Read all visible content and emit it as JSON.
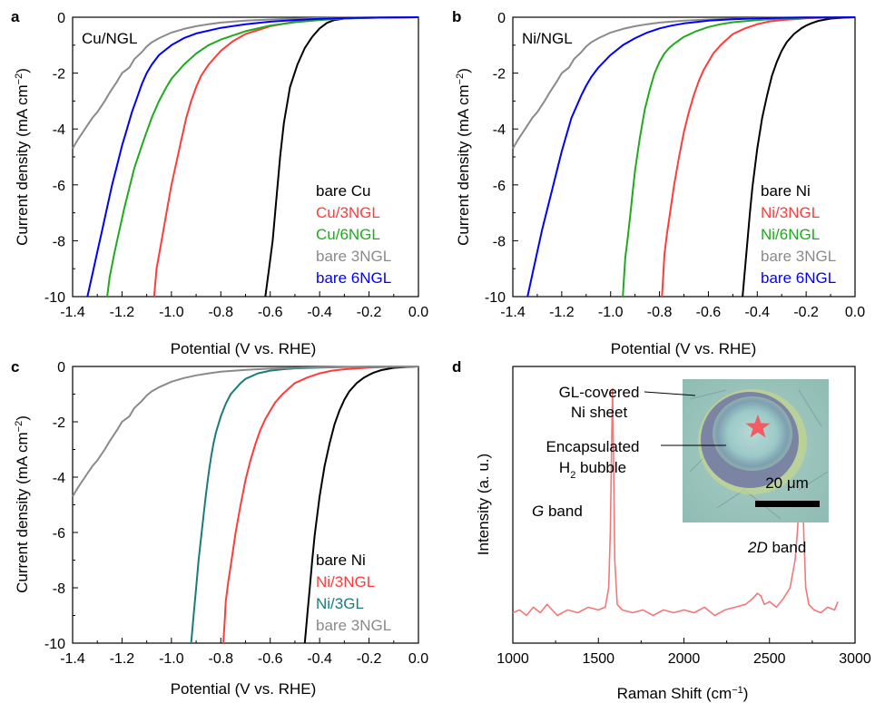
{
  "chart_data": [
    {
      "type": "line",
      "panel_label": "a",
      "title": "Cu/NGL",
      "xlabel": "Potential (V vs. RHE)",
      "ylabel_main": "Current density (mA cm",
      "ylabel_sup": "−2",
      "ylabel_close": ")",
      "xlim": [
        -1.4,
        0.0
      ],
      "ylim": [
        -10,
        0
      ],
      "xticks": [
        "-1.4",
        "-1.2",
        "-1.0",
        "-0.8",
        "-0.6",
        "-0.4",
        "-0.2",
        "0.0"
      ],
      "yticks": [
        "0",
        "-2",
        "-4",
        "-6",
        "-8",
        "-10"
      ],
      "legend_position": "bottom-right",
      "series": [
        {
          "name": "bare Cu",
          "color": "#000000",
          "x": [
            -0.62,
            -0.605,
            -0.59,
            -0.575,
            -0.56,
            -0.545,
            -0.52,
            -0.49,
            -0.46,
            -0.43,
            -0.4,
            -0.37,
            -0.34,
            -0.3,
            -0.25,
            -0.2,
            -0.1,
            0.0
          ],
          "y": [
            -10,
            -9.0,
            -8.0,
            -6.5,
            -5.0,
            -3.8,
            -2.5,
            -1.7,
            -1.1,
            -0.7,
            -0.4,
            -0.2,
            -0.1,
            -0.05,
            -0.03,
            -0.02,
            -0.01,
            0
          ]
        },
        {
          "name": "Cu/3NGL",
          "color": "#ff3b3b",
          "x": [
            -1.07,
            -1.06,
            -1.04,
            -1.02,
            -1.0,
            -0.98,
            -0.96,
            -0.94,
            -0.92,
            -0.9,
            -0.88,
            -0.85,
            -0.8,
            -0.75,
            -0.7,
            -0.6,
            -0.5,
            -0.4,
            -0.3,
            -0.2,
            -0.1,
            0.0
          ],
          "y": [
            -10,
            -9.0,
            -8.0,
            -7.0,
            -6.0,
            -5.2,
            -4.4,
            -3.6,
            -3.0,
            -2.5,
            -2.1,
            -1.7,
            -1.2,
            -0.85,
            -0.6,
            -0.32,
            -0.16,
            -0.08,
            -0.04,
            -0.02,
            -0.01,
            0
          ]
        },
        {
          "name": "Cu/6NGL",
          "color": "#1faa1f",
          "x": [
            -1.26,
            -1.25,
            -1.23,
            -1.21,
            -1.19,
            -1.17,
            -1.15,
            -1.12,
            -1.1,
            -1.08,
            -1.05,
            -1.02,
            -1.0,
            -0.95,
            -0.9,
            -0.85,
            -0.8,
            -0.7,
            -0.6,
            -0.5,
            -0.4,
            -0.3,
            -0.2,
            -0.1,
            0.0
          ],
          "y": [
            -10,
            -9.3,
            -8.4,
            -7.6,
            -6.8,
            -6.1,
            -5.4,
            -4.6,
            -4.1,
            -3.6,
            -3.0,
            -2.5,
            -2.2,
            -1.7,
            -1.3,
            -1.0,
            -0.8,
            -0.5,
            -0.3,
            -0.18,
            -0.1,
            -0.05,
            -0.02,
            -0.01,
            0
          ]
        },
        {
          "name": "bare 3NGL",
          "color": "#8a8a8a",
          "x": [
            -1.4,
            -1.38,
            -1.35,
            -1.32,
            -1.3,
            -1.27,
            -1.25,
            -1.22,
            -1.2,
            -1.17,
            -1.15,
            -1.12,
            -1.1,
            -1.08,
            -1.05,
            -1.0,
            -0.95,
            -0.9,
            -0.85,
            -0.8,
            -0.7,
            -0.6,
            -0.5,
            -0.4,
            -0.3,
            -0.2,
            -0.1,
            0.0
          ],
          "y": [
            -4.7,
            -4.4,
            -4.0,
            -3.6,
            -3.4,
            -3.0,
            -2.7,
            -2.3,
            -2.0,
            -1.8,
            -1.5,
            -1.25,
            -1.05,
            -0.9,
            -0.75,
            -0.55,
            -0.42,
            -0.32,
            -0.25,
            -0.19,
            -0.12,
            -0.08,
            -0.05,
            -0.03,
            -0.02,
            -0.01,
            -0.005,
            0
          ]
        },
        {
          "name": "bare 6NGL",
          "color": "#0000ff",
          "x": [
            -1.34,
            -1.32,
            -1.3,
            -1.28,
            -1.26,
            -1.24,
            -1.22,
            -1.2,
            -1.18,
            -1.16,
            -1.14,
            -1.12,
            -1.1,
            -1.08,
            -1.05,
            -1.0,
            -0.95,
            -0.9,
            -0.8,
            -0.7,
            -0.6,
            -0.5,
            -0.4,
            -0.3,
            -0.2,
            -0.1,
            0.0
          ],
          "y": [
            -10,
            -9.2,
            -8.4,
            -7.6,
            -6.8,
            -6.0,
            -5.3,
            -4.6,
            -4.0,
            -3.4,
            -2.9,
            -2.4,
            -2.0,
            -1.7,
            -1.35,
            -1.0,
            -0.75,
            -0.58,
            -0.38,
            -0.25,
            -0.16,
            -0.1,
            -0.06,
            -0.03,
            -0.015,
            -0.005,
            0
          ]
        }
      ]
    },
    {
      "type": "line",
      "panel_label": "b",
      "title": "Ni/NGL",
      "xlabel": "Potential (V vs. RHE)",
      "ylabel_main": "Current density (mA cm",
      "ylabel_sup": "−2",
      "ylabel_close": ")",
      "xlim": [
        -1.4,
        0.0
      ],
      "ylim": [
        -10,
        0
      ],
      "xticks": [
        "-1.4",
        "-1.2",
        "-1.0",
        "-0.8",
        "-0.6",
        "-0.4",
        "-0.2",
        "0.0"
      ],
      "yticks": [
        "0",
        "-2",
        "-4",
        "-6",
        "-8",
        "-10"
      ],
      "legend_position": "bottom-right",
      "series": [
        {
          "name": "bare Ni",
          "color": "#000000",
          "x": [
            -0.46,
            -0.45,
            -0.44,
            -0.43,
            -0.42,
            -0.41,
            -0.4,
            -0.38,
            -0.36,
            -0.34,
            -0.32,
            -0.3,
            -0.28,
            -0.25,
            -0.22,
            -0.2,
            -0.18,
            -0.15,
            -0.1,
            -0.05,
            0.0
          ],
          "y": [
            -10,
            -9.0,
            -8.0,
            -7.0,
            -6.1,
            -5.4,
            -4.7,
            -3.6,
            -2.8,
            -2.1,
            -1.6,
            -1.2,
            -0.9,
            -0.6,
            -0.4,
            -0.3,
            -0.22,
            -0.13,
            -0.05,
            -0.02,
            0
          ]
        },
        {
          "name": "Ni/3NGL",
          "color": "#ff3b3b",
          "x": [
            -0.79,
            -0.785,
            -0.78,
            -0.77,
            -0.76,
            -0.75,
            -0.74,
            -0.72,
            -0.7,
            -0.68,
            -0.66,
            -0.64,
            -0.62,
            -0.6,
            -0.58,
            -0.55,
            -0.5,
            -0.45,
            -0.4,
            -0.35,
            -0.3,
            -0.2,
            -0.1,
            0.0
          ],
          "y": [
            -10,
            -9.3,
            -8.5,
            -7.8,
            -7.2,
            -6.6,
            -6.0,
            -5.0,
            -4.1,
            -3.4,
            -2.8,
            -2.3,
            -1.9,
            -1.6,
            -1.3,
            -1.0,
            -0.6,
            -0.4,
            -0.25,
            -0.15,
            -0.1,
            -0.04,
            -0.01,
            0
          ]
        },
        {
          "name": "Ni/6NGL",
          "color": "#1faa1f",
          "x": [
            -0.95,
            -0.945,
            -0.94,
            -0.93,
            -0.92,
            -0.91,
            -0.9,
            -0.88,
            -0.86,
            -0.84,
            -0.82,
            -0.8,
            -0.78,
            -0.76,
            -0.74,
            -0.7,
            -0.65,
            -0.6,
            -0.55,
            -0.5,
            -0.4,
            -0.3,
            -0.2,
            -0.1,
            0.0
          ],
          "y": [
            -10,
            -9.3,
            -8.6,
            -7.9,
            -7.1,
            -6.3,
            -5.5,
            -4.3,
            -3.3,
            -2.6,
            -2.0,
            -1.6,
            -1.3,
            -1.1,
            -0.95,
            -0.7,
            -0.5,
            -0.35,
            -0.25,
            -0.18,
            -0.1,
            -0.05,
            -0.02,
            -0.01,
            0
          ]
        },
        {
          "name": "bare 3NGL",
          "color": "#8a8a8a",
          "x": [
            -1.4,
            -1.38,
            -1.35,
            -1.32,
            -1.3,
            -1.27,
            -1.25,
            -1.22,
            -1.2,
            -1.17,
            -1.15,
            -1.12,
            -1.1,
            -1.08,
            -1.05,
            -1.0,
            -0.95,
            -0.9,
            -0.85,
            -0.8,
            -0.7,
            -0.6,
            -0.5,
            -0.4,
            -0.3,
            -0.2,
            -0.1,
            0.0
          ],
          "y": [
            -4.7,
            -4.4,
            -4.0,
            -3.6,
            -3.4,
            -3.0,
            -2.7,
            -2.3,
            -2.0,
            -1.8,
            -1.5,
            -1.25,
            -1.05,
            -0.9,
            -0.75,
            -0.55,
            -0.42,
            -0.32,
            -0.25,
            -0.19,
            -0.12,
            -0.08,
            -0.05,
            -0.03,
            -0.02,
            -0.01,
            -0.005,
            0
          ]
        },
        {
          "name": "bare 6NGL",
          "color": "#0000ff",
          "x": [
            -1.34,
            -1.32,
            -1.3,
            -1.28,
            -1.26,
            -1.24,
            -1.22,
            -1.2,
            -1.18,
            -1.16,
            -1.14,
            -1.12,
            -1.1,
            -1.08,
            -1.05,
            -1.0,
            -0.95,
            -0.9,
            -0.85,
            -0.8,
            -0.75,
            -0.7,
            -0.6,
            -0.5,
            -0.4,
            -0.3,
            -0.2,
            -0.1,
            0.0
          ],
          "y": [
            -10,
            -9.2,
            -8.4,
            -7.6,
            -6.9,
            -6.2,
            -5.5,
            -4.8,
            -4.2,
            -3.6,
            -3.2,
            -2.8,
            -2.45,
            -2.15,
            -1.8,
            -1.35,
            -1.0,
            -0.75,
            -0.55,
            -0.4,
            -0.3,
            -0.22,
            -0.12,
            -0.07,
            -0.04,
            -0.02,
            -0.01,
            -0.005,
            0
          ]
        }
      ]
    },
    {
      "type": "line",
      "panel_label": "c",
      "title": "",
      "xlabel": "Potential (V vs. RHE)",
      "ylabel_main": "Current density (mA cm",
      "ylabel_sup": "−2",
      "ylabel_close": ")",
      "xlim": [
        -1.4,
        0.0
      ],
      "ylim": [
        -10,
        0
      ],
      "xticks": [
        "-1.4",
        "-1.2",
        "-1.0",
        "-0.8",
        "-0.6",
        "-0.4",
        "-0.2",
        "0.0"
      ],
      "yticks": [
        "0",
        "-2",
        "-4",
        "-6",
        "-8",
        "-10"
      ],
      "legend_position": "bottom-right",
      "series": [
        {
          "name": "bare Ni",
          "color": "#000000",
          "x": [
            -0.46,
            -0.45,
            -0.44,
            -0.43,
            -0.42,
            -0.41,
            -0.4,
            -0.38,
            -0.36,
            -0.34,
            -0.32,
            -0.3,
            -0.28,
            -0.25,
            -0.22,
            -0.2,
            -0.18,
            -0.15,
            -0.1,
            -0.05,
            0.0
          ],
          "y": [
            -10,
            -9.0,
            -8.0,
            -7.0,
            -6.1,
            -5.4,
            -4.7,
            -3.6,
            -2.8,
            -2.1,
            -1.6,
            -1.2,
            -0.9,
            -0.6,
            -0.4,
            -0.3,
            -0.22,
            -0.13,
            -0.05,
            -0.02,
            0
          ]
        },
        {
          "name": "Ni/3NGL",
          "color": "#ff3b3b",
          "x": [
            -0.79,
            -0.785,
            -0.78,
            -0.77,
            -0.76,
            -0.75,
            -0.74,
            -0.72,
            -0.7,
            -0.68,
            -0.66,
            -0.64,
            -0.62,
            -0.6,
            -0.58,
            -0.55,
            -0.5,
            -0.45,
            -0.4,
            -0.35,
            -0.3,
            -0.2,
            -0.1,
            0.0
          ],
          "y": [
            -10,
            -9.3,
            -8.5,
            -7.8,
            -7.2,
            -6.6,
            -6.0,
            -5.0,
            -4.1,
            -3.4,
            -2.8,
            -2.3,
            -1.9,
            -1.6,
            -1.3,
            -1.0,
            -0.6,
            -0.4,
            -0.25,
            -0.15,
            -0.1,
            -0.04,
            -0.01,
            0
          ]
        },
        {
          "name": "Ni/3GL",
          "color": "#1b7b7b",
          "x": [
            -0.92,
            -0.91,
            -0.9,
            -0.89,
            -0.88,
            -0.87,
            -0.86,
            -0.85,
            -0.84,
            -0.83,
            -0.82,
            -0.8,
            -0.78,
            -0.76,
            -0.74,
            -0.72,
            -0.7,
            -0.65,
            -0.6,
            -0.55,
            -0.5,
            -0.4,
            -0.3,
            -0.2,
            -0.1,
            0.0
          ],
          "y": [
            -10,
            -9.0,
            -8.0,
            -7.0,
            -6.2,
            -5.4,
            -4.6,
            -3.9,
            -3.3,
            -2.8,
            -2.4,
            -1.8,
            -1.35,
            -1.0,
            -0.8,
            -0.6,
            -0.45,
            -0.25,
            -0.15,
            -0.1,
            -0.07,
            -0.04,
            -0.02,
            -0.01,
            -0.005,
            0
          ]
        },
        {
          "name": "bare 3NGL",
          "color": "#8a8a8a",
          "x": [
            -1.4,
            -1.38,
            -1.35,
            -1.32,
            -1.3,
            -1.27,
            -1.25,
            -1.22,
            -1.2,
            -1.17,
            -1.15,
            -1.12,
            -1.1,
            -1.08,
            -1.05,
            -1.0,
            -0.95,
            -0.9,
            -0.85,
            -0.8,
            -0.7,
            -0.6,
            -0.5,
            -0.4,
            -0.3,
            -0.2,
            -0.1,
            0.0
          ],
          "y": [
            -4.7,
            -4.4,
            -4.0,
            -3.6,
            -3.4,
            -3.0,
            -2.7,
            -2.3,
            -2.0,
            -1.8,
            -1.5,
            -1.25,
            -1.05,
            -0.9,
            -0.75,
            -0.55,
            -0.42,
            -0.32,
            -0.25,
            -0.19,
            -0.12,
            -0.08,
            -0.05,
            -0.03,
            -0.02,
            -0.01,
            -0.005,
            0
          ]
        }
      ]
    },
    {
      "type": "line",
      "panel_label": "d",
      "title": "",
      "xlabel_main": "Raman Shift (cm",
      "xlabel_sup": "−1",
      "xlabel_close": ")",
      "ylabel": "Intensity (a. u.)",
      "xlim": [
        1000,
        3000
      ],
      "ylim": [
        0,
        1
      ],
      "xticks": [
        "1000",
        "1500",
        "2000",
        "2500",
        "3000"
      ],
      "yticks": [],
      "series": [
        {
          "name": "",
          "color": "#f27878",
          "x": [
            1000,
            1040,
            1080,
            1120,
            1160,
            1200,
            1260,
            1320,
            1380,
            1440,
            1500,
            1540,
            1560,
            1570,
            1578,
            1583,
            1588,
            1596,
            1610,
            1640,
            1700,
            1760,
            1820,
            1880,
            1940,
            2000,
            2060,
            2120,
            2180,
            2240,
            2300,
            2360,
            2400,
            2430,
            2450,
            2470,
            2500,
            2540,
            2580,
            2620,
            2650,
            2665,
            2677,
            2685,
            2692,
            2700,
            2712,
            2730,
            2760,
            2800,
            2840,
            2880,
            2900
          ],
          "y": [
            0.11,
            0.12,
            0.1,
            0.13,
            0.11,
            0.14,
            0.1,
            0.12,
            0.11,
            0.13,
            0.12,
            0.13,
            0.2,
            0.4,
            0.75,
            0.92,
            0.7,
            0.3,
            0.14,
            0.12,
            0.11,
            0.12,
            0.1,
            0.12,
            0.11,
            0.12,
            0.11,
            0.13,
            0.1,
            0.12,
            0.13,
            0.14,
            0.16,
            0.18,
            0.17,
            0.14,
            0.15,
            0.13,
            0.16,
            0.2,
            0.3,
            0.42,
            0.6,
            0.68,
            0.62,
            0.4,
            0.2,
            0.14,
            0.12,
            0.11,
            0.13,
            0.12,
            0.15
          ]
        }
      ],
      "annotations": {
        "g_band_italic": "G",
        "g_band_rest": " band",
        "twod_band_italic": "2D",
        "twod_band_rest": " band"
      },
      "inset": {
        "label_sheet_line1": "GL-covered",
        "label_sheet_line2": "Ni sheet",
        "label_bubble_line1": "Encapsulated",
        "label_bubble_line2_main": "H",
        "label_bubble_line2_sub": "2",
        "label_bubble_line2_rest": " bubble",
        "scale_bar": "20 μm",
        "marker": "star"
      }
    }
  ]
}
